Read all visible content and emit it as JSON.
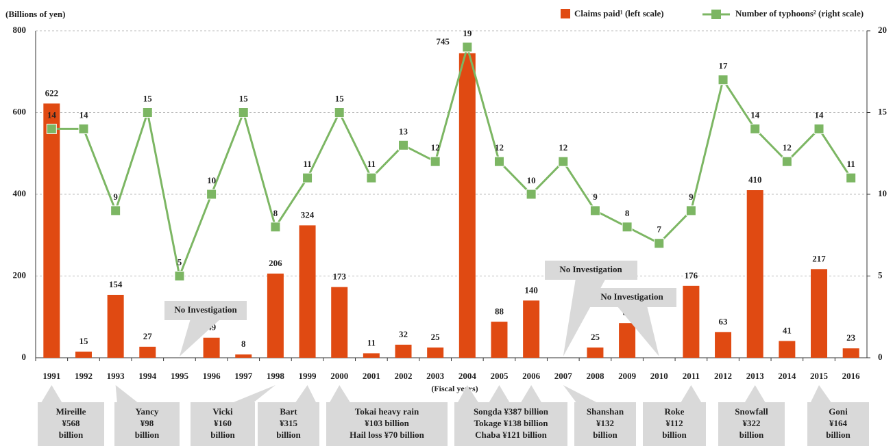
{
  "chart_data": {
    "type": "bar-line",
    "ylabel": "(Billions of yen)",
    "xlabel": "(Fiscal years)",
    "categories": [
      "1991",
      "1992",
      "1993",
      "1994",
      "1995",
      "1996",
      "1997",
      "1998",
      "1999",
      "2000",
      "2001",
      "2002",
      "2003",
      "2004",
      "2005",
      "2006",
      "2007",
      "2008",
      "2009",
      "2010",
      "2011",
      "2012",
      "2013",
      "2014",
      "2015",
      "2016"
    ],
    "series": [
      {
        "name": "Claims paid¹ (left scale)",
        "type": "bar",
        "color": "#e04a12",
        "values": [
          622,
          15,
          154,
          27,
          null,
          49,
          8,
          206,
          324,
          173,
          11,
          32,
          25,
          745,
          88,
          140,
          null,
          25,
          85,
          null,
          176,
          63,
          410,
          41,
          217,
          23
        ]
      },
      {
        "name": "Number of typhoons² (right scale)",
        "type": "line",
        "axis": "y2",
        "color": "#7cb663",
        "values": [
          14,
          14,
          9,
          15,
          5,
          10,
          15,
          8,
          11,
          15,
          11,
          13,
          12,
          19,
          12,
          10,
          12,
          9,
          8,
          7,
          9,
          17,
          14,
          12,
          14,
          11
        ]
      }
    ],
    "ylim": [
      0,
      800
    ],
    "yticks": [
      0,
      200,
      400,
      600,
      800
    ],
    "y2lim": [
      0,
      20
    ],
    "y2ticks": [
      0,
      5,
      10,
      15,
      20
    ],
    "grid": true,
    "annotations": [
      "No Investigation",
      "No Investigation",
      "No Investigation"
    ],
    "callouts": [
      [
        "Mireille",
        "¥568",
        "billion"
      ],
      [
        "Yancy",
        "¥98",
        "billion"
      ],
      [
        "Vicki",
        "¥160",
        "billion"
      ],
      [
        "Bart",
        "¥315",
        "billion"
      ],
      [
        "Tokai heavy rain",
        "¥103 billion",
        "Hail loss ¥70 billion"
      ],
      [
        "Songda ¥387 billion",
        "Tokage ¥138 billion",
        "Chaba ¥121 billion"
      ],
      [
        "Shanshan",
        "¥132",
        "billion"
      ],
      [
        "Roke",
        "¥112",
        "billion"
      ],
      [
        "Snowfall",
        "¥322",
        "billion"
      ],
      [
        "Goni",
        "¥164",
        "billion"
      ]
    ]
  }
}
